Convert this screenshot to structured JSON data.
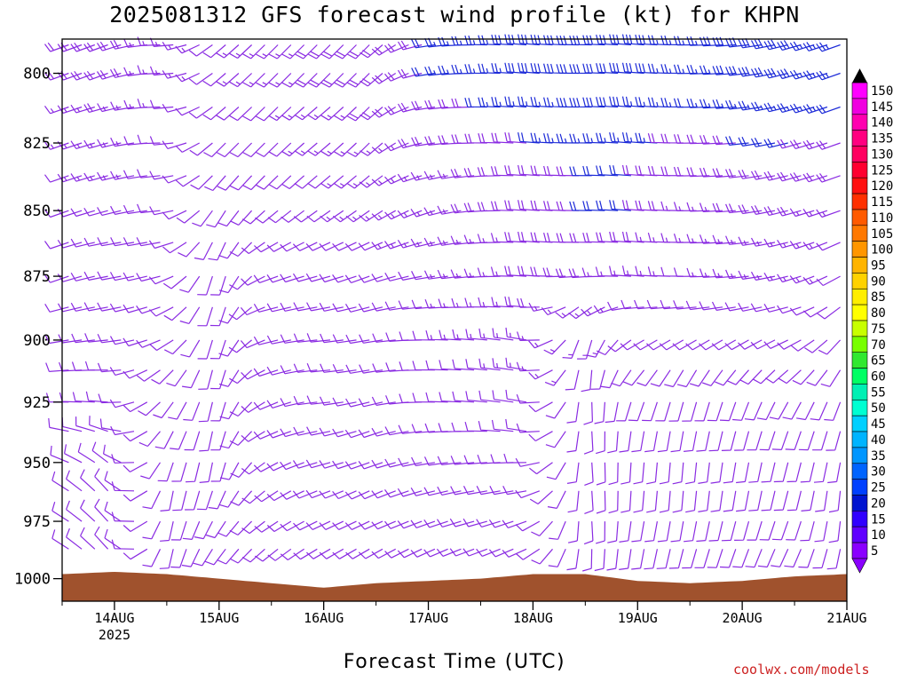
{
  "title": "2025081312 GFS forecast wind profile (kt) for KHPN",
  "xlabel": "Forecast Time (UTC)",
  "credit": "coolwx.com/models",
  "colors": {
    "terrain": "#a0522d",
    "barb_light": "#8a2be2",
    "barb_strong": "#1c2ad8"
  },
  "chart_data": {
    "type": "wind-barb time-height section",
    "location": "KHPN",
    "model": "GFS",
    "init": "2025081312",
    "units": "kt",
    "y_axis": {
      "ticks": [
        "800",
        "825",
        "850",
        "875",
        "900",
        "925",
        "950",
        "975",
        "1000"
      ],
      "values": [
        800,
        825,
        850,
        875,
        900,
        925,
        950,
        975,
        1000
      ],
      "range": [
        788,
        1010
      ],
      "scale": "log-pressure"
    },
    "x_axis": {
      "ticks": [
        "14AUG",
        "15AUG",
        "16AUG",
        "17AUG",
        "18AUG",
        "19AUG",
        "20AUG",
        "21AUG"
      ],
      "sub_tick": "2025",
      "range_hours_from_14AUG00": [
        -12,
        168
      ]
    },
    "colorbar": {
      "labels": [
        "150",
        "145",
        "140",
        "135",
        "130",
        "125",
        "120",
        "115",
        "110",
        "105",
        "100",
        "95",
        "90",
        "85",
        "80",
        "75",
        "70",
        "65",
        "60",
        "55",
        "50",
        "45",
        "40",
        "35",
        "30",
        "25",
        "20",
        "15",
        "10",
        "5"
      ],
      "colors": [
        "#ff00ff",
        "#f000e0",
        "#ff00b0",
        "#ff0080",
        "#ff0060",
        "#ff0030",
        "#ff1010",
        "#ff3000",
        "#ff5a00",
        "#ff7800",
        "#ff9600",
        "#ffb400",
        "#ffd200",
        "#ffee00",
        "#ffff00",
        "#c8ff00",
        "#78ff00",
        "#30e830",
        "#00ff64",
        "#00f0b4",
        "#00ffd2",
        "#00d0ff",
        "#00b4ff",
        "#0096ff",
        "#0064ff",
        "#0040ff",
        "#0014d0",
        "#3000ff",
        "#6000ff",
        "#8a00ff"
      ]
    },
    "levels_hpa": [
      790,
      800,
      812,
      825,
      837,
      850,
      862,
      875,
      887,
      900,
      912,
      925,
      937,
      950,
      962,
      975,
      987,
      1000
    ],
    "hours": [
      -12,
      0,
      12,
      24,
      36,
      48,
      60,
      72,
      84,
      96,
      108,
      120,
      132,
      144,
      156,
      168
    ],
    "speed_kt_by_level": [
      [
        18,
        20,
        15,
        12,
        15,
        18,
        20,
        22,
        25,
        30,
        32,
        30,
        25,
        30,
        28,
        25
      ],
      [
        18,
        20,
        15,
        12,
        15,
        18,
        20,
        22,
        25,
        28,
        30,
        30,
        25,
        28,
        28,
        25
      ],
      [
        15,
        18,
        12,
        10,
        12,
        15,
        18,
        20,
        22,
        25,
        28,
        28,
        22,
        25,
        25,
        22
      ],
      [
        15,
        15,
        10,
        10,
        10,
        15,
        15,
        18,
        20,
        22,
        25,
        25,
        20,
        22,
        22,
        20
      ],
      [
        12,
        15,
        10,
        10,
        10,
        12,
        15,
        15,
        18,
        20,
        22,
        22,
        18,
        20,
        20,
        18
      ],
      [
        12,
        12,
        10,
        10,
        10,
        12,
        15,
        15,
        18,
        20,
        22,
        22,
        15,
        18,
        18,
        15
      ],
      [
        10,
        12,
        8,
        10,
        10,
        12,
        12,
        15,
        15,
        18,
        20,
        18,
        15,
        15,
        15,
        12
      ],
      [
        10,
        10,
        8,
        10,
        10,
        10,
        12,
        12,
        15,
        18,
        18,
        15,
        12,
        15,
        15,
        12
      ],
      [
        10,
        10,
        8,
        8,
        10,
        10,
        12,
        12,
        15,
        18,
        15,
        12,
        10,
        12,
        12,
        10
      ],
      [
        10,
        10,
        8,
        8,
        10,
        10,
        10,
        12,
        15,
        15,
        15,
        10,
        10,
        10,
        10,
        10
      ],
      [
        10,
        10,
        8,
        8,
        10,
        10,
        10,
        12,
        12,
        15,
        12,
        10,
        10,
        10,
        10,
        10
      ],
      [
        10,
        10,
        8,
        10,
        10,
        10,
        10,
        12,
        12,
        12,
        12,
        10,
        12,
        10,
        10,
        10
      ],
      [
        8,
        10,
        8,
        12,
        10,
        10,
        10,
        12,
        12,
        12,
        10,
        10,
        12,
        10,
        10,
        10
      ],
      [
        8,
        8,
        8,
        12,
        10,
        10,
        10,
        12,
        10,
        10,
        10,
        10,
        12,
        10,
        10,
        10
      ],
      [
        8,
        8,
        8,
        10,
        10,
        10,
        10,
        10,
        10,
        10,
        8,
        10,
        10,
        10,
        10,
        10
      ],
      [
        8,
        8,
        8,
        10,
        10,
        10,
        10,
        10,
        10,
        10,
        8,
        10,
        10,
        10,
        10,
        10
      ],
      [
        8,
        8,
        8,
        8,
        10,
        8,
        8,
        10,
        8,
        8,
        8,
        10,
        10,
        10,
        10,
        10
      ],
      [
        5,
        8,
        5,
        8,
        8,
        8,
        8,
        8,
        8,
        8,
        5,
        8,
        8,
        8,
        8,
        8
      ]
    ],
    "direction_deg_by_level": [
      [
        250,
        250,
        270,
        230,
        225,
        225,
        225,
        260,
        270,
        275,
        270,
        275,
        270,
        265,
        255,
        250
      ],
      [
        250,
        250,
        270,
        230,
        225,
        225,
        225,
        260,
        270,
        275,
        270,
        275,
        270,
        265,
        255,
        250
      ],
      [
        250,
        255,
        270,
        230,
        225,
        230,
        225,
        260,
        270,
        275,
        270,
        275,
        270,
        265,
        255,
        250
      ],
      [
        250,
        255,
        270,
        225,
        225,
        230,
        225,
        260,
        270,
        275,
        270,
        275,
        270,
        265,
        255,
        250
      ],
      [
        250,
        255,
        265,
        220,
        225,
        230,
        230,
        255,
        265,
        275,
        270,
        275,
        270,
        265,
        255,
        250
      ],
      [
        250,
        255,
        265,
        210,
        230,
        235,
        235,
        250,
        265,
        275,
        270,
        275,
        270,
        265,
        255,
        250
      ],
      [
        250,
        260,
        260,
        200,
        240,
        245,
        245,
        255,
        265,
        275,
        270,
        275,
        270,
        265,
        255,
        245
      ],
      [
        250,
        260,
        255,
        190,
        250,
        255,
        250,
        260,
        265,
        275,
        265,
        275,
        270,
        265,
        255,
        240
      ],
      [
        255,
        260,
        250,
        190,
        255,
        260,
        255,
        265,
        270,
        275,
        230,
        265,
        265,
        260,
        255,
        230
      ],
      [
        260,
        265,
        245,
        190,
        255,
        265,
        260,
        270,
        275,
        280,
        190,
        240,
        240,
        240,
        245,
        220
      ],
      [
        265,
        270,
        230,
        190,
        250,
        265,
        260,
        270,
        275,
        280,
        180,
        220,
        210,
        220,
        230,
        210
      ],
      [
        270,
        275,
        220,
        190,
        245,
        265,
        255,
        270,
        275,
        280,
        175,
        200,
        195,
        200,
        210,
        200
      ],
      [
        280,
        290,
        210,
        190,
        245,
        260,
        250,
        265,
        270,
        280,
        175,
        190,
        190,
        195,
        200,
        195
      ],
      [
        290,
        310,
        200,
        190,
        240,
        255,
        250,
        260,
        265,
        270,
        175,
        185,
        185,
        190,
        195,
        190
      ],
      [
        300,
        320,
        190,
        200,
        235,
        250,
        245,
        255,
        260,
        260,
        175,
        185,
        185,
        190,
        195,
        185
      ],
      [
        300,
        320,
        190,
        210,
        235,
        245,
        245,
        250,
        255,
        250,
        175,
        190,
        190,
        195,
        200,
        185
      ],
      [
        300,
        320,
        190,
        215,
        230,
        240,
        240,
        245,
        250,
        245,
        180,
        190,
        195,
        200,
        205,
        190
      ],
      [
        300,
        320,
        200,
        220,
        230,
        240,
        240,
        245,
        250,
        245,
        185,
        195,
        200,
        205,
        210,
        195
      ]
    ],
    "surface_pressure_hpa": [
      998,
      997,
      998,
      1000,
      1002,
      1004,
      1002,
      1001,
      1000,
      998,
      998,
      1001,
      1002,
      1001,
      999,
      998
    ]
  }
}
